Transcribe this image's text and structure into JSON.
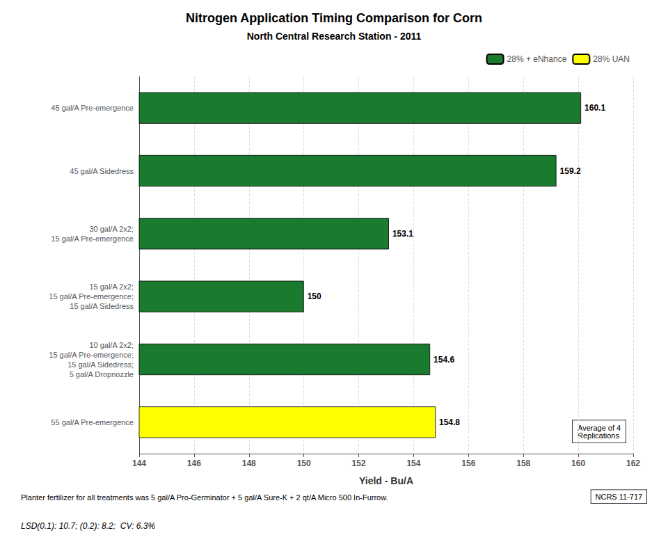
{
  "chart_data": {
    "type": "bar",
    "orientation": "horizontal",
    "stacked": true,
    "title": "Nitrogen Application Timing Comparison for Corn",
    "subtitle": "North Central Research Station - 2011",
    "categories": [
      "45 gal/A Pre-emergence",
      "45 gal/A Sidedress",
      "30 gal/A 2x2;\n15 gal/A Pre-emergence",
      "15 gal/A 2x2;\n15 gal/A Pre-emergence;\n15 gal/A Sidedress",
      "10 gal/A 2x2;\n15 gal/A Pre-emergence;\n15 gal/A Sidedress;\n5 gal/A Dropnozzle",
      "55 gal/A Pre-emergence"
    ],
    "series": [
      {
        "name": "28% + eNhance",
        "color": "#1A7A2E",
        "values": [
          160.1,
          159.2,
          153.1,
          150.0,
          154.6,
          null
        ]
      },
      {
        "name": "28% UAN",
        "color": "#FFFF00",
        "values": [
          null,
          null,
          null,
          null,
          null,
          154.8
        ]
      }
    ],
    "data_labels": true,
    "xlabel": "Yield - Bu/A",
    "xlim": [
      144,
      162
    ],
    "xticks": [
      144,
      146,
      148,
      150,
      152,
      154,
      156,
      158,
      160,
      162
    ],
    "grid": true,
    "legend": "upper right",
    "annotations": [
      "Average of 4\nReplications",
      "Planter fertilizer for all treatments was 5 gal/A Pro-Germinator + 5 gal/A Sure-K + 2 qt/A Micro 500 In-Furrow.",
      "NCRS 11-717",
      "LSD(0.1): 10.7; (0.2): 8.2;  CV: 6.3%"
    ]
  }
}
